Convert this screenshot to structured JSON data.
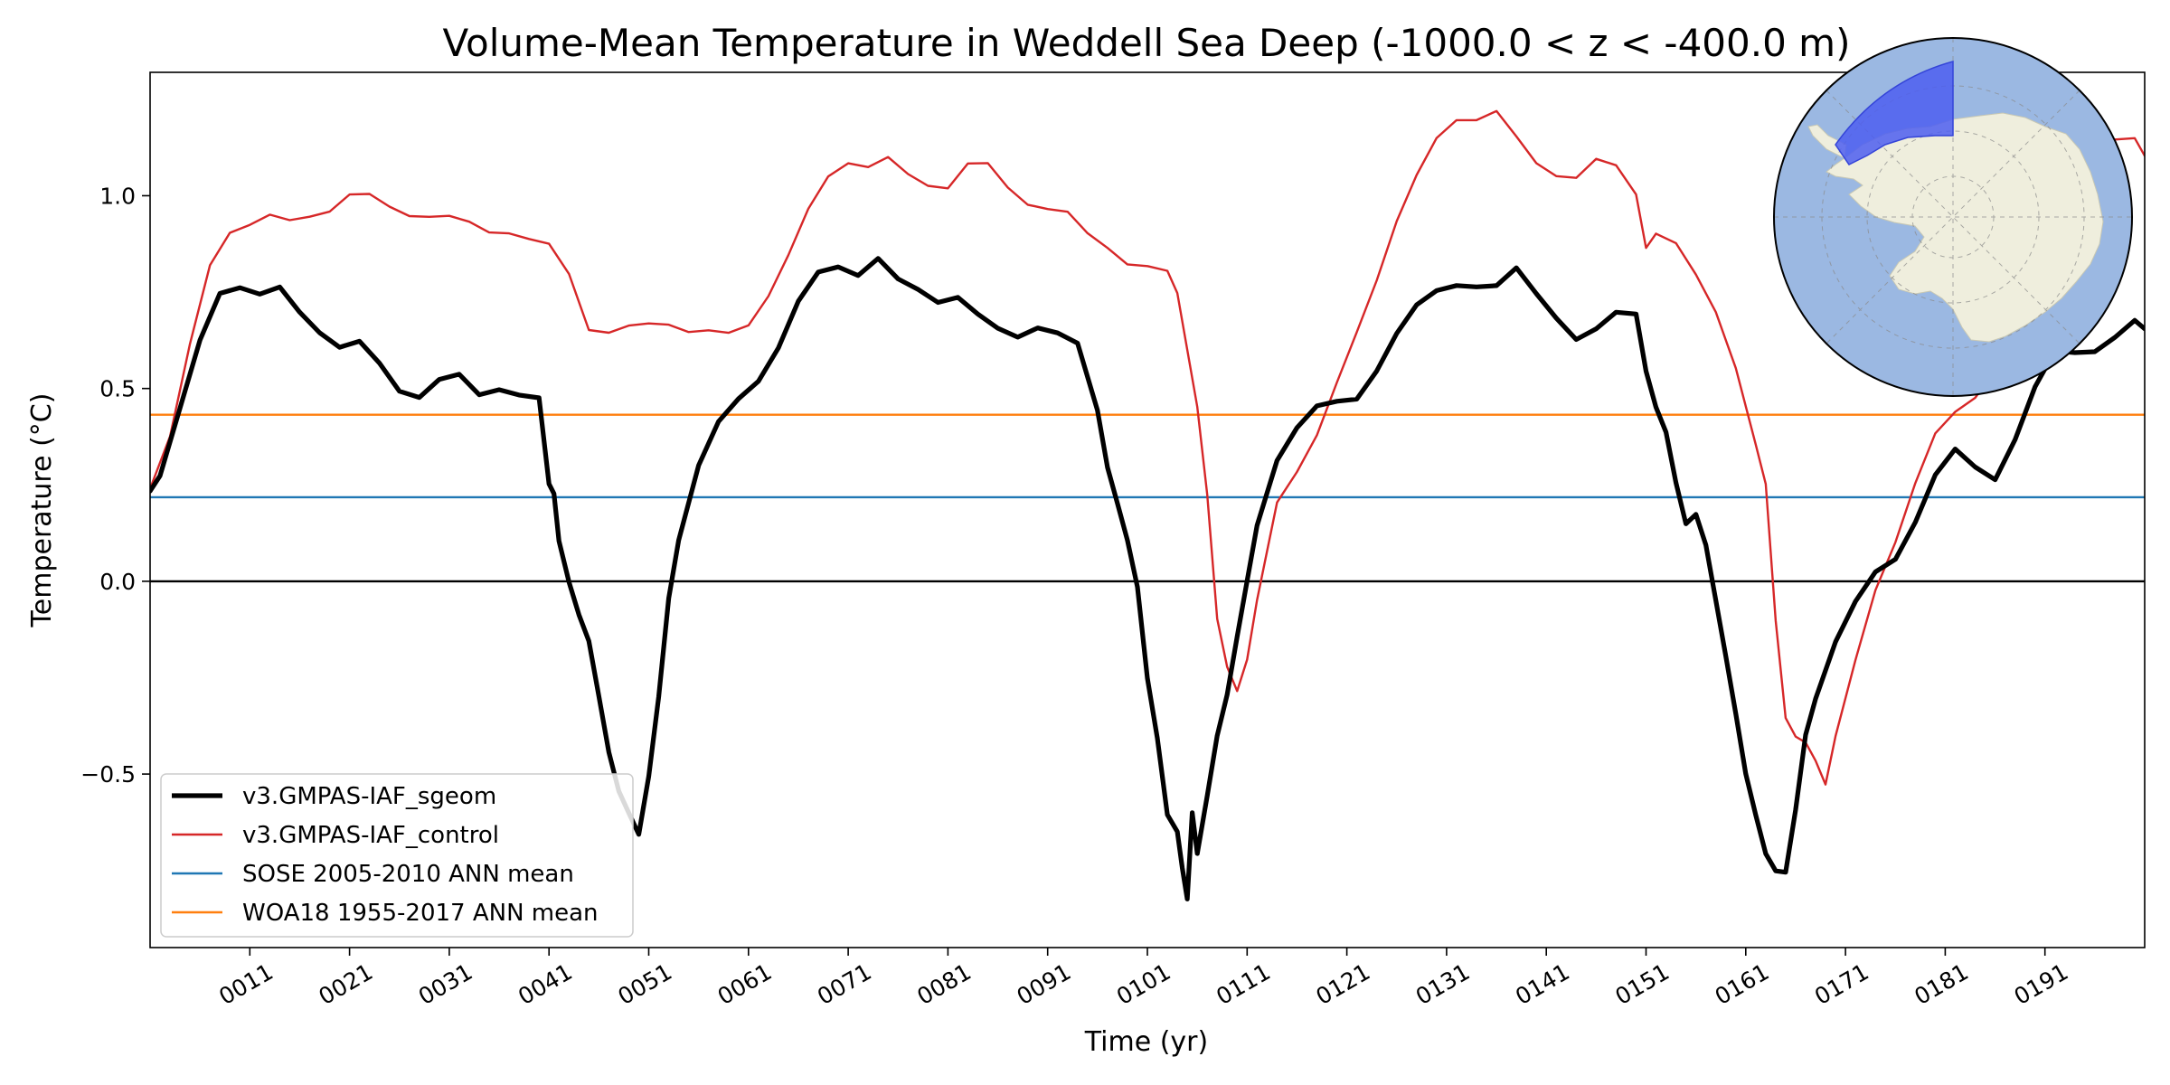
{
  "chart_data": {
    "type": "line",
    "title": "Volume-Mean Temperature in Weddell Sea Deep (-1000.0 < z < -400.0 m)",
    "xlabel": "Time (yr)",
    "ylabel": "Temperature ($^\\circ$C)",
    "ylabel_display": "Temperature (°C)",
    "xlim": [
      1,
      201
    ],
    "ylim": [
      -0.95,
      1.32
    ],
    "xticks": [
      11,
      21,
      31,
      41,
      51,
      61,
      71,
      81,
      91,
      101,
      111,
      121,
      131,
      141,
      151,
      161,
      171,
      181,
      191
    ],
    "xtick_labels": [
      "0011",
      "0021",
      "0031",
      "0041",
      "0051",
      "0061",
      "0071",
      "0081",
      "0091",
      "0101",
      "0111",
      "0121",
      "0131",
      "0141",
      "0151",
      "0161",
      "0171",
      "0181",
      "0191"
    ],
    "yticks": [
      -0.5,
      0.0,
      0.5,
      1.0
    ],
    "ytick_labels": [
      "−0.5",
      "0.0",
      "0.5",
      "1.0"
    ],
    "legend_position": "lower-left",
    "inset": "south-polar-map-with-weddell-sea-region",
    "series": [
      {
        "name": "v3.GMPAS-IAF_sgeom",
        "color": "#000000",
        "role": "thick-line",
        "x": [
          1,
          2,
          4,
          6,
          8,
          10,
          12,
          14,
          16,
          18,
          20,
          22,
          24,
          26,
          28,
          30,
          32,
          34,
          36,
          38,
          40,
          41,
          41.5,
          42,
          43,
          44,
          45,
          46,
          47,
          48,
          49,
          50,
          51,
          52,
          53,
          54,
          56,
          58,
          60,
          62,
          64,
          66,
          68,
          70,
          72,
          74,
          76,
          78,
          80,
          82,
          84,
          86,
          88,
          90,
          92,
          94,
          96,
          97,
          98,
          99,
          100,
          101,
          102,
          103,
          104,
          104.5,
          105,
          105.5,
          106,
          107,
          108,
          109,
          110,
          111,
          112,
          114,
          116,
          118,
          120,
          122,
          124,
          126,
          128,
          130,
          132,
          134,
          136,
          138,
          140,
          142,
          144,
          146,
          148,
          150,
          151,
          152,
          153,
          154,
          155,
          156,
          157,
          158,
          159,
          160,
          161,
          162,
          163,
          164,
          165,
          166,
          167,
          168,
          170,
          172,
          174,
          176,
          178,
          180,
          182,
          184,
          186,
          188,
          190,
          192,
          194,
          196,
          198,
          200,
          201
        ],
        "y": [
          0.24,
          0.28,
          0.45,
          0.62,
          0.74,
          0.76,
          0.75,
          0.77,
          0.7,
          0.64,
          0.6,
          0.62,
          0.57,
          0.5,
          0.48,
          0.52,
          0.53,
          0.48,
          0.5,
          0.49,
          0.48,
          0.25,
          0.22,
          0.1,
          0.0,
          -0.08,
          -0.15,
          -0.3,
          -0.45,
          -0.55,
          -0.6,
          -0.65,
          -0.5,
          -0.3,
          -0.05,
          0.1,
          0.3,
          0.42,
          0.48,
          0.52,
          0.6,
          0.72,
          0.8,
          0.82,
          0.8,
          0.84,
          0.78,
          0.75,
          0.72,
          0.74,
          0.7,
          0.66,
          0.63,
          0.65,
          0.64,
          0.62,
          0.45,
          0.3,
          0.2,
          0.1,
          -0.02,
          -0.25,
          -0.4,
          -0.6,
          -0.65,
          -0.75,
          -0.83,
          -0.6,
          -0.7,
          -0.55,
          -0.4,
          -0.3,
          -0.15,
          0.0,
          0.15,
          0.32,
          0.4,
          0.45,
          0.46,
          0.47,
          0.55,
          0.65,
          0.72,
          0.75,
          0.76,
          0.76,
          0.77,
          0.82,
          0.75,
          0.68,
          0.62,
          0.65,
          0.7,
          0.7,
          0.55,
          0.45,
          0.38,
          0.25,
          0.15,
          0.18,
          0.1,
          -0.05,
          -0.2,
          -0.35,
          -0.5,
          -0.6,
          -0.7,
          -0.75,
          -0.76,
          -0.6,
          -0.4,
          -0.3,
          -0.15,
          -0.05,
          0.02,
          0.05,
          0.15,
          0.28,
          0.35,
          0.3,
          0.26,
          0.36,
          0.5,
          0.6,
          0.6,
          0.6,
          0.63,
          0.67,
          0.65
        ]
      },
      {
        "name": "v3.GMPAS-IAF_control",
        "color": "#d62728",
        "role": "line",
        "x": [
          1,
          3,
          5,
          7,
          9,
          11,
          13,
          15,
          17,
          19,
          21,
          23,
          25,
          27,
          29,
          31,
          33,
          35,
          37,
          39,
          41,
          43,
          45,
          47,
          49,
          51,
          53,
          55,
          57,
          59,
          61,
          63,
          65,
          67,
          69,
          71,
          73,
          75,
          77,
          79,
          81,
          83,
          85,
          87,
          89,
          91,
          93,
          95,
          97,
          99,
          101,
          103,
          104,
          106,
          107,
          108,
          109,
          110,
          111,
          112,
          114,
          116,
          118,
          120,
          122,
          124,
          126,
          128,
          130,
          132,
          134,
          136,
          138,
          140,
          142,
          144,
          146,
          148,
          150,
          151,
          152,
          154,
          156,
          158,
          160,
          162,
          163,
          164,
          165,
          166,
          167,
          168,
          169,
          170,
          172,
          174,
          176,
          178,
          180,
          182,
          184,
          186,
          188,
          190,
          192,
          194,
          196,
          198,
          200,
          201
        ],
        "y": [
          0.24,
          0.38,
          0.62,
          0.82,
          0.9,
          0.92,
          0.95,
          0.94,
          0.95,
          0.96,
          1.0,
          1.0,
          0.97,
          0.95,
          0.95,
          0.95,
          0.93,
          0.9,
          0.9,
          0.89,
          0.88,
          0.8,
          0.65,
          0.64,
          0.66,
          0.67,
          0.67,
          0.65,
          0.65,
          0.64,
          0.66,
          0.74,
          0.85,
          0.97,
          1.05,
          1.08,
          1.07,
          1.1,
          1.06,
          1.03,
          1.02,
          1.08,
          1.08,
          1.02,
          0.98,
          0.97,
          0.96,
          0.9,
          0.86,
          0.82,
          0.82,
          0.81,
          0.75,
          0.45,
          0.22,
          -0.1,
          -0.22,
          -0.28,
          -0.2,
          -0.05,
          0.2,
          0.28,
          0.38,
          0.52,
          0.65,
          0.78,
          0.93,
          1.05,
          1.15,
          1.2,
          1.2,
          1.22,
          1.15,
          1.08,
          1.05,
          1.05,
          1.1,
          1.08,
          1.0,
          0.86,
          0.9,
          0.88,
          0.8,
          0.7,
          0.55,
          0.35,
          0.25,
          -0.1,
          -0.35,
          -0.4,
          -0.42,
          -0.47,
          -0.53,
          -0.4,
          -0.2,
          -0.02,
          0.1,
          0.25,
          0.38,
          0.44,
          0.48,
          0.55,
          0.62,
          0.78,
          0.92,
          1.05,
          1.12,
          1.15,
          1.15,
          1.1
        ]
      },
      {
        "name": "SOSE 2005-2010 ANN mean",
        "color": "#1f77b4",
        "role": "hline",
        "y": 0.218
      },
      {
        "name": "WOA18 1955-2017 ANN mean",
        "color": "#ff7f0e",
        "role": "hline",
        "y": 0.432
      }
    ],
    "zero_line": 0.0
  }
}
